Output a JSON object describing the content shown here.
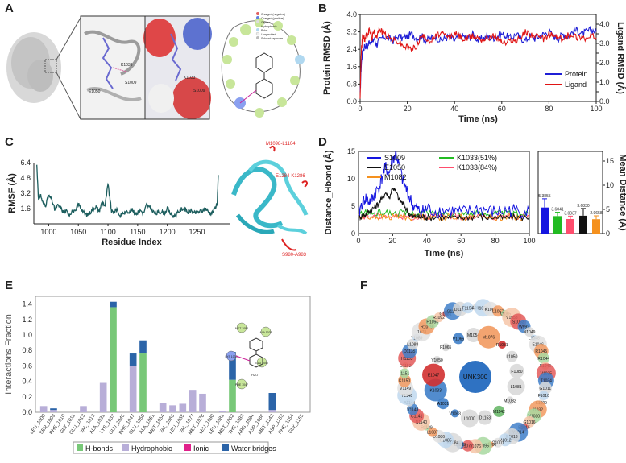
{
  "panels": [
    {
      "key": "A",
      "label": "A"
    },
    {
      "key": "B",
      "label": "B"
    },
    {
      "key": "C",
      "label": "C"
    },
    {
      "key": "D",
      "label": "D"
    },
    {
      "key": "E",
      "label": "E"
    },
    {
      "key": "F",
      "label": "F"
    }
  ],
  "panelA": {
    "residue_labels": [
      "K1033",
      "S1009",
      "E1050",
      "K1033",
      "S1009"
    ],
    "legend_items": [
      "Charged (negative)",
      "Charged (positive)",
      "Glycine",
      "Hydrophobic",
      "Polar",
      "Unspecified",
      "Solvent exposure"
    ]
  },
  "chart_data": [
    {
      "panel": "B",
      "type": "line",
      "title": "",
      "xlabel": "Time (ns)",
      "ylabel": "Protein RMSD (Å)",
      "y2label": "Ligand RMSD (Å)",
      "xlim": [
        0,
        100
      ],
      "ylim": [
        0,
        4.0
      ],
      "y2lim": [
        0,
        4.5
      ],
      "xticks": [
        0,
        20,
        40,
        60,
        80,
        100
      ],
      "yticks": [
        0.0,
        0.8,
        1.6,
        2.4,
        3.2,
        4.0
      ],
      "y2ticks": [
        0.0,
        0.5,
        1.0,
        1.5,
        2.0,
        2.5,
        3.0,
        3.5,
        4.0
      ],
      "legend_position": "bottom-right",
      "series": [
        {
          "name": "Protein",
          "color": "#1f1fd6",
          "x": [
            0,
            0.5,
            1,
            2,
            3,
            4,
            5,
            6,
            7,
            8,
            10,
            12,
            14,
            16,
            18,
            20,
            22,
            24,
            26,
            28,
            30,
            32,
            34,
            36,
            38,
            40,
            42,
            44,
            46,
            48,
            50,
            52,
            54,
            56,
            58,
            60,
            62,
            64,
            66,
            68,
            70,
            72,
            74,
            76,
            78,
            80,
            82,
            84,
            86,
            88,
            90,
            92,
            94,
            96,
            98,
            100
          ],
          "y": [
            0.3,
            1.7,
            2.3,
            2.6,
            2.5,
            2.8,
            2.7,
            2.9,
            2.6,
            2.8,
            3.0,
            2.9,
            2.8,
            3.0,
            2.9,
            3.0,
            3.1,
            2.9,
            3.0,
            2.8,
            2.9,
            3.0,
            2.8,
            2.9,
            3.0,
            2.8,
            3.0,
            3.0,
            2.9,
            3.1,
            2.8,
            2.9,
            3.0,
            2.9,
            3.0,
            3.1,
            3.0,
            2.9,
            3.1,
            2.9,
            2.8,
            3.0,
            2.9,
            3.0,
            3.1,
            3.2,
            3.0,
            2.9,
            3.1,
            3.0,
            3.2,
            3.3,
            3.1,
            3.2,
            3.3,
            3.2
          ]
        },
        {
          "name": "Ligand",
          "color": "#e01414",
          "x": [
            0,
            0.5,
            1,
            2,
            3,
            4,
            5,
            6,
            7,
            8,
            10,
            12,
            14,
            16,
            18,
            20,
            22,
            24,
            26,
            28,
            30,
            32,
            34,
            36,
            38,
            40,
            42,
            44,
            46,
            48,
            50,
            52,
            54,
            56,
            58,
            60,
            62,
            64,
            66,
            68,
            70,
            72,
            74,
            76,
            78,
            80,
            82,
            84,
            86,
            88,
            90,
            92,
            94,
            96,
            98,
            100
          ],
          "y": [
            0.2,
            2.6,
            3.4,
            3.2,
            3.5,
            3.7,
            3.3,
            3.6,
            3.4,
            3.7,
            3.6,
            3.3,
            3.2,
            3.1,
            2.9,
            2.8,
            2.7,
            2.9,
            3.4,
            3.3,
            3.1,
            3.4,
            3.5,
            3.4,
            3.3,
            3.5,
            3.4,
            3.2,
            3.3,
            3.4,
            3.3,
            3.2,
            3.3,
            3.4,
            3.3,
            3.1,
            3.0,
            3.2,
            3.1,
            3.3,
            3.6,
            3.5,
            3.4,
            3.3,
            3.2,
            3.5,
            3.4,
            3.3,
            3.2,
            3.4,
            3.5,
            3.3,
            3.4,
            3.2,
            3.4,
            3.3
          ]
        }
      ]
    },
    {
      "panel": "C",
      "type": "line",
      "title": "",
      "xlabel": "Residue Index",
      "ylabel": "RMSF (Å)",
      "xlim": [
        975,
        1305
      ],
      "ylim": [
        0,
        6.4
      ],
      "xticks": [
        1000,
        1050,
        1100,
        1150,
        1200,
        1250
      ],
      "yticks": [
        1.6,
        3.2,
        4.8,
        6.4
      ],
      "grid": false,
      "series": [
        {
          "name": "",
          "color": "#1d5e5e",
          "x": [
            980,
            983,
            986,
            990,
            995,
            1000,
            1005,
            1010,
            1015,
            1020,
            1025,
            1030,
            1035,
            1040,
            1045,
            1050,
            1055,
            1060,
            1065,
            1070,
            1075,
            1080,
            1085,
            1090,
            1095,
            1100,
            1103,
            1106,
            1110,
            1115,
            1120,
            1125,
            1130,
            1135,
            1140,
            1145,
            1150,
            1155,
            1160,
            1165,
            1170,
            1175,
            1180,
            1185,
            1190,
            1195,
            1200,
            1205,
            1210,
            1215,
            1220,
            1225,
            1230,
            1235,
            1240,
            1245,
            1250,
            1255,
            1260,
            1265,
            1270,
            1275,
            1280,
            1284,
            1286
          ],
          "y": [
            6.2,
            2.4,
            3.1,
            2.2,
            2.0,
            2.9,
            2.6,
            1.5,
            1.9,
            1.7,
            1.2,
            1.3,
            1.0,
            1.4,
            1.2,
            2.1,
            1.6,
            1.1,
            0.9,
            1.2,
            1.6,
            1.8,
            1.3,
            2.3,
            1.9,
            4.1,
            2.7,
            1.3,
            1.2,
            1.6,
            0.8,
            1.1,
            1.2,
            1.3,
            1.5,
            1.1,
            1.2,
            1.4,
            1.1,
            2.0,
            1.7,
            1.4,
            1.0,
            1.2,
            1.3,
            1.1,
            1.6,
            1.1,
            0.8,
            1.0,
            1.3,
            1.6,
            1.5,
            1.2,
            1.4,
            1.1,
            1.2,
            1.3,
            1.4,
            1.6,
            1.2,
            1.1,
            1.6,
            2.2,
            5.1
          ]
        }
      ],
      "annotations": [
        "M1098-L1104",
        "E1284-K1286",
        "S980-A983"
      ]
    },
    {
      "panel": "D",
      "type": "line",
      "title": "",
      "xlabel": "Time (ns)",
      "ylabel": "Distance_Hbond (Å)",
      "xlim": [
        0,
        100
      ],
      "ylim": [
        0,
        15
      ],
      "xticks": [
        0,
        20,
        40,
        60,
        80,
        100
      ],
      "yticks": [
        0,
        5,
        10,
        15
      ],
      "legend_position": "top",
      "series": [
        {
          "name": "S1009",
          "color": "#1515e0",
          "x": [
            0,
            2,
            4,
            6,
            8,
            10,
            12,
            14,
            16,
            18,
            20,
            22,
            24,
            26,
            28,
            30,
            32,
            34,
            36,
            38,
            40,
            45,
            50,
            55,
            60,
            65,
            70,
            75,
            80,
            85,
            90,
            95,
            100
          ],
          "y": [
            3.5,
            5.5,
            6.5,
            5.8,
            6.2,
            7.5,
            8.5,
            10.5,
            12.0,
            11.0,
            13.5,
            14.5,
            12.0,
            9.5,
            8.0,
            6.5,
            5.0,
            4.5,
            4.0,
            4.2,
            4.5,
            4.0,
            4.3,
            4.1,
            3.8,
            4.0,
            4.5,
            4.2,
            3.9,
            4.1,
            4.3,
            4.0,
            4.2
          ]
        },
        {
          "name": "E1050",
          "color": "#111111",
          "x": [
            0,
            2,
            4,
            6,
            8,
            10,
            12,
            14,
            16,
            18,
            20,
            22,
            24,
            26,
            28,
            30,
            32,
            34,
            36,
            38,
            40,
            45,
            50,
            55,
            60,
            65,
            70,
            75,
            80,
            85,
            90,
            95,
            100
          ],
          "y": [
            3.0,
            3.2,
            3.5,
            4.0,
            4.5,
            5.0,
            5.5,
            6.5,
            7.5,
            6.5,
            8.5,
            7.5,
            6.0,
            5.5,
            4.5,
            3.5,
            3.0,
            3.2,
            3.0,
            3.1,
            2.9,
            3.0,
            3.0,
            2.8,
            2.9,
            3.0,
            3.1,
            2.9,
            3.0,
            2.8,
            3.0,
            2.9,
            3.0
          ]
        },
        {
          "name": "M1082",
          "color": "#f5911e",
          "x": [
            0,
            5,
            10,
            15,
            20,
            25,
            30,
            35,
            40,
            45,
            50,
            55,
            60,
            65,
            70,
            75,
            80,
            85,
            90,
            95,
            100
          ],
          "y": [
            2.8,
            3.0,
            3.1,
            2.9,
            3.0,
            3.2,
            2.9,
            3.0,
            3.1,
            2.9,
            3.0,
            3.1,
            3.0,
            2.9,
            3.0,
            3.1,
            2.9,
            3.0,
            3.1,
            2.9,
            3.0
          ]
        },
        {
          "name": "K1033(51%)",
          "color": "#22bb22",
          "x": [
            0,
            5,
            10,
            15,
            20,
            25,
            30,
            35,
            40,
            45,
            50,
            55,
            60,
            65,
            70,
            75,
            80,
            85,
            90,
            95,
            100
          ],
          "y": [
            3.5,
            3.8,
            3.6,
            3.9,
            3.7,
            3.8,
            3.6,
            3.7,
            3.9,
            3.6,
            3.8,
            3.7,
            3.5,
            3.8,
            3.6,
            3.7,
            3.8,
            3.6,
            3.7,
            3.5,
            3.6
          ]
        },
        {
          "name": "K1033(84%)",
          "color": "#ff4d6d",
          "x": [
            0,
            5,
            10,
            15,
            20,
            25,
            30,
            35,
            40,
            45,
            50,
            55,
            60,
            65,
            70,
            75,
            80,
            85,
            90,
            95,
            100
          ],
          "y": [
            3.0,
            3.2,
            3.1,
            3.3,
            3.0,
            3.2,
            3.1,
            3.0,
            3.2,
            3.1,
            3.0,
            3.2,
            3.1,
            3.0,
            3.2,
            3.1,
            3.0,
            3.2,
            3.1,
            3.0,
            3.1
          ]
        }
      ]
    },
    {
      "panel": "D-right",
      "type": "bar",
      "title": "",
      "xlabel": "",
      "ylabel": "Mean Distance (Å)",
      "ylim": [
        0,
        17
      ],
      "yticks": [
        0,
        5,
        10,
        15
      ],
      "categories": [
        "S1009",
        "K1033(51%)",
        "K1033(84%)",
        "E1050",
        "M1082"
      ],
      "values": [
        5.3855,
        3.6041,
        3.0037,
        3.683,
        2.9658
      ],
      "labels": [
        "5.3855",
        "3.6041",
        "3.0037",
        "3.6830",
        "2.9658"
      ],
      "errors": [
        1.8,
        0.8,
        0.6,
        1.5,
        0.7
      ],
      "colors": [
        "#1515e0",
        "#22bb22",
        "#ff4d6d",
        "#111111",
        "#f5911e"
      ]
    },
    {
      "panel": "E",
      "type": "bar",
      "title": "",
      "xlabel": "",
      "ylabel": "Interactions Fraction",
      "ylim": [
        0,
        1.5
      ],
      "yticks": [
        0.0,
        0.2,
        0.4,
        0.6,
        0.8,
        1.0,
        1.2,
        1.4
      ],
      "legend_position": "bottom",
      "categories": [
        "LEU_1000",
        "SER_1009",
        "PHE_1010",
        "GLY_1011",
        "GLU_1013",
        "VAL_1013",
        "ALA_1031",
        "LYS_1033",
        "GLU_1046",
        "PHE_1047",
        "GLU_1050",
        "ALA_1051",
        "MET_1054",
        "VAL_1063",
        "LEU_1065",
        "VAL_1077",
        "MET_1078",
        "LEU_1080",
        "LEU_1081",
        "MET_1082",
        "THR_1083",
        "ARG_1084",
        "ASP_1086",
        "MET_1142",
        "ASP_1153",
        "PHE_1154",
        "GLY_1155"
      ],
      "series": [
        {
          "name": "H-bonds",
          "color": "#78c878",
          "values": [
            0,
            0,
            0,
            0,
            0,
            0,
            0,
            1.36,
            0,
            0,
            0.76,
            0,
            0,
            0,
            0,
            0,
            0,
            0,
            0,
            0.42,
            0,
            0,
            0,
            0,
            0,
            0,
            0
          ]
        },
        {
          "name": "Hydrophobic",
          "color": "#b8aed8",
          "values": [
            0.08,
            0.03,
            0,
            0,
            0.08,
            0,
            0.38,
            0,
            0,
            0.6,
            0,
            0,
            0.12,
            0.09,
            0.11,
            0.29,
            0.24,
            0,
            0.02,
            0,
            0,
            0,
            0,
            0.03,
            0,
            0,
            0
          ]
        },
        {
          "name": "Ionic",
          "color": "#e0208a",
          "values": [
            0,
            0,
            0,
            0,
            0,
            0,
            0,
            0,
            0,
            0,
            0,
            0,
            0,
            0,
            0,
            0,
            0,
            0,
            0,
            0,
            0,
            0,
            0,
            0,
            0,
            0,
            0
          ]
        },
        {
          "name": "Water bridges",
          "color": "#2b64a8",
          "values": [
            0,
            0.02,
            0,
            0,
            0,
            0,
            0,
            0.07,
            0,
            0.16,
            0.17,
            0,
            0,
            0,
            0,
            0,
            0,
            0,
            0,
            0.36,
            0,
            0,
            0,
            0.22,
            0,
            0,
            0
          ]
        }
      ]
    }
  ],
  "panelE_inset_labels": [
    "MET 1082",
    "ALA 1031",
    "LYS 1033",
    "PHE 1047",
    "GLU 1050",
    "H2O"
  ],
  "panelF": {
    "center_label": "UNK300",
    "outer_ring": [
      "F1058",
      "I1059",
      "K1060",
      "L1057",
      "K1055",
      "V1053",
      "S1052",
      "W992",
      "N1049",
      "L1048",
      "E1046",
      "R1045",
      "R1044",
      "E1043",
      "V1035",
      "T1034",
      "G1011",
      "F1010",
      "S1009",
      "I1032",
      "V1030",
      "G1016",
      "E1015",
      "Y1014",
      "E1013",
      "M1012",
      "Q1001",
      "D1000",
      "V1095",
      "L1076",
      "I1077",
      "L1083",
      "R1084",
      "G1085",
      "D1086",
      "L1087",
      "R1139",
      "N1140",
      "C1141",
      "V1143",
      "A1144",
      "T1148",
      "V1149",
      "K1150",
      "I1151",
      "G1152",
      "H1133",
      "D1135",
      "L1088",
      "Y1089",
      "I1078",
      "R1079",
      "H1090",
      "R1092",
      "G1081",
      "G1108",
      "D1153",
      "F1154"
    ],
    "inner_ring": [
      "F1065",
      "V1065",
      "M1054",
      "M1076",
      "R1051",
      "L1050",
      "F1080",
      "L1081",
      "M1082",
      "M1142",
      "D1153",
      "L1000",
      "V1063",
      "A1031",
      "K1033",
      "E1047",
      "Y1050"
    ]
  }
}
